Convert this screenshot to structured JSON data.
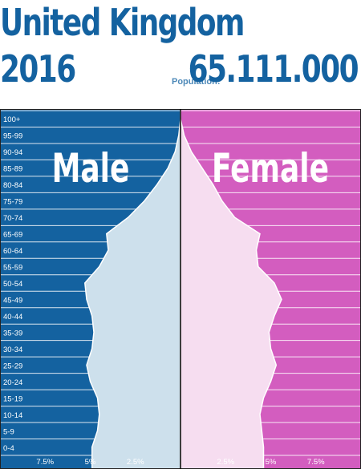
{
  "header": {
    "country": "United Kingdom",
    "year": "2016",
    "population_label": "Population:",
    "population_value": "65.111.000"
  },
  "chart_data": {
    "type": "bar",
    "orientation": "horizontal-pyramid",
    "categories": [
      "100+",
      "95-99",
      "90-94",
      "85-89",
      "80-84",
      "75-79",
      "70-74",
      "65-69",
      "60-64",
      "55-59",
      "50-54",
      "45-49",
      "40-44",
      "35-39",
      "30-34",
      "25-29",
      "20-24",
      "15-19",
      "10-14",
      "5-9",
      "0-4"
    ],
    "series": [
      {
        "name": "Male",
        "values": [
          0.0,
          0.1,
          0.3,
          0.7,
          1.3,
          2.0,
          2.9,
          4.1,
          4.0,
          4.5,
          5.3,
          5.2,
          4.9,
          4.8,
          4.9,
          5.2,
          5.0,
          4.6,
          4.5,
          4.6,
          4.9
        ]
      },
      {
        "name": "Female",
        "values": [
          0.0,
          0.2,
          0.6,
          1.2,
          1.8,
          2.3,
          3.0,
          4.4,
          4.2,
          4.3,
          5.2,
          5.6,
          5.2,
          4.9,
          5.0,
          5.3,
          5.0,
          4.6,
          4.4,
          4.5,
          4.6
        ]
      }
    ],
    "xlim": [
      -10,
      10
    ],
    "xticks": [
      {
        "value": -7.5,
        "label": "7.5%"
      },
      {
        "value": -5,
        "label": "5%"
      },
      {
        "value": -2.5,
        "label": "2.5%"
      },
      {
        "value": 2.5,
        "label": "2.5%"
      },
      {
        "value": 5,
        "label": "5%"
      },
      {
        "value": 7.5,
        "label": "7.5%"
      }
    ],
    "colors": {
      "male_bg": "#1462a0",
      "female_bg": "#d35dbf",
      "male_fill": "#cde0ec",
      "female_fill": "#f6ddf0",
      "grid": "#ffffff",
      "center": "#000000"
    }
  }
}
